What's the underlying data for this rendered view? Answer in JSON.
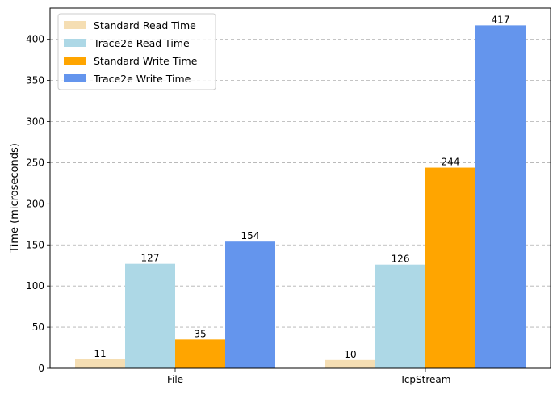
{
  "chart_data": {
    "type": "bar",
    "title": "",
    "xlabel": "",
    "ylabel": "Time (microseconds)",
    "categories": [
      "File",
      "TcpStream"
    ],
    "series": [
      {
        "name": "Standard Read Time",
        "values": [
          11,
          10
        ],
        "color": "#f5deb3"
      },
      {
        "name": "Trace2e Read Time",
        "values": [
          127,
          126
        ],
        "color": "#add8e6"
      },
      {
        "name": "Standard Write Time",
        "values": [
          35,
          244
        ],
        "color": "#ffa500"
      },
      {
        "name": "Trace2e Write Time",
        "values": [
          154,
          417
        ],
        "color": "#6495ed"
      }
    ],
    "ylim": [
      0,
      438
    ],
    "yticks": [
      0,
      50,
      100,
      150,
      200,
      250,
      300,
      350,
      400
    ],
    "grid": "y-axis dashed",
    "legend": "top-left",
    "data_labels": true
  }
}
